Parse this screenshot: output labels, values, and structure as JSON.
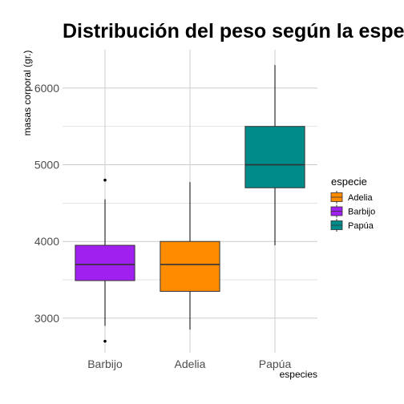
{
  "chart_data": {
    "type": "boxplot",
    "title": "Distribución del peso según la especie",
    "xlabel": "especies",
    "ylabel": "masas corporal (gr.)",
    "categories": [
      "Barbijo",
      "Adelia",
      "Papúa"
    ],
    "ylim": [
      2550,
      6500
    ],
    "yticks": [
      3000,
      4000,
      5000,
      6000
    ],
    "grid": true,
    "boxes": [
      {
        "category": "Barbijo",
        "color": "#A020F0",
        "whisker_low": 2900,
        "q1": 3490,
        "median": 3700,
        "q3": 3950,
        "whisker_high": 4550,
        "outliers": [
          4800,
          2700
        ]
      },
      {
        "category": "Adelia",
        "color": "#FF8C00",
        "whisker_low": 2850,
        "q1": 3350,
        "median": 3700,
        "q3": 4000,
        "whisker_high": 4775,
        "outliers": []
      },
      {
        "category": "Papúa",
        "color": "#008B8B",
        "whisker_low": 3950,
        "q1": 4700,
        "median": 5000,
        "q3": 5500,
        "whisker_high": 6300,
        "outliers": []
      }
    ],
    "legend": {
      "title": "especie",
      "position": "right",
      "items": [
        {
          "label": "Adelia",
          "color": "#FF8C00"
        },
        {
          "label": "Barbijo",
          "color": "#A020F0"
        },
        {
          "label": "Papúa",
          "color": "#008B8B"
        }
      ]
    }
  }
}
